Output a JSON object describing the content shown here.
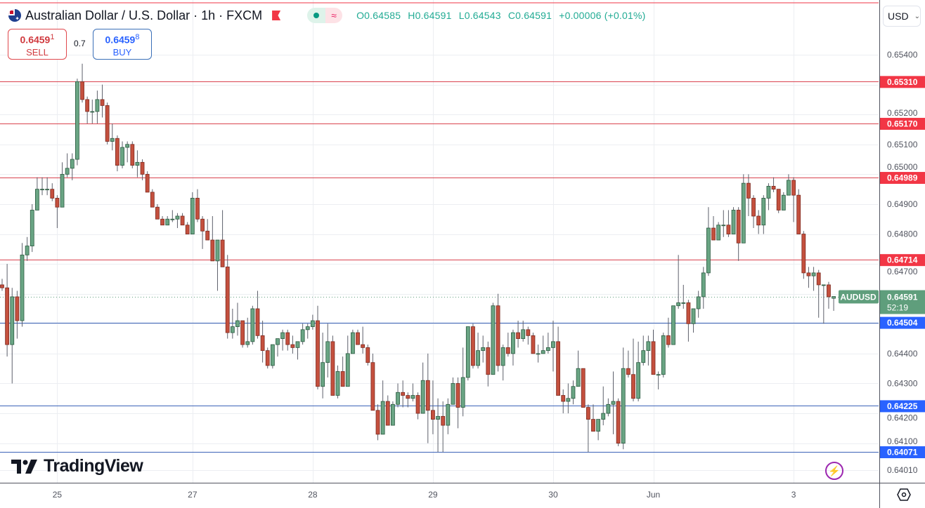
{
  "header": {
    "title": "Australian Dollar / U.S. Dollar · 1h · FXCM",
    "ohlc": {
      "open": "O0.64585",
      "high": "H0.64591",
      "low": "L0.64543",
      "close": "C0.64591",
      "change": "+0.00006 (+0.01%)"
    },
    "status_dot_color": "#089981"
  },
  "trade": {
    "sell_price_main": "0.6459",
    "sell_price_sup": "1",
    "sell_label": "SELL",
    "spread": "0.7",
    "buy_price_main": "0.6459",
    "buy_price_sup": "8",
    "buy_label": "BUY"
  },
  "currency_select": {
    "value": "USD"
  },
  "logo": "TradingView",
  "icons": [
    "flag-au-icon",
    "flag-marker-icon",
    "market-open-dot-icon",
    "approx-icon",
    "chevron-down-icon",
    "lightning-icon",
    "settings-hex-icon",
    "tradingview-logo-icon"
  ],
  "colors": {
    "up": "#6aa584",
    "down": "#c4503e",
    "resistance": "#f23645",
    "support": "#2962ff",
    "last_price": "#5f9e7c"
  },
  "chart_data": {
    "type": "candlestick",
    "symbol": "AUDUSD",
    "interval": "1h",
    "ylim": [
      0.6395,
      0.6555
    ],
    "grid": true,
    "y_ticks": [
      "0.65400",
      "0.65200",
      "0.65100",
      "0.65000",
      "0.64900",
      "0.64800",
      "0.64700",
      "0.64400",
      "0.64300",
      "0.64200",
      "0.64100",
      "0.64010"
    ],
    "x_ticks": [
      {
        "label": "25",
        "bar": 11
      },
      {
        "label": "27",
        "bar": 38
      },
      {
        "label": "28",
        "bar": 62
      },
      {
        "label": "29",
        "bar": 86
      },
      {
        "label": "30",
        "bar": 110
      },
      {
        "label": "Jun",
        "bar": 130
      },
      {
        "label": "3",
        "bar": 158
      }
    ],
    "levels": [
      {
        "price": "0.65310",
        "kind": "resistance"
      },
      {
        "price": "0.65170",
        "kind": "resistance"
      },
      {
        "price": "0.64989",
        "kind": "resistance"
      },
      {
        "price": "0.64714",
        "kind": "resistance"
      },
      {
        "price": "0.64504",
        "kind": "support"
      },
      {
        "price": "0.64225",
        "kind": "support"
      },
      {
        "price": "0.64071",
        "kind": "support"
      }
    ],
    "last_price": {
      "symbol": "AUDUSD",
      "price": "0.64591",
      "countdown": "52:19"
    },
    "candles_ohlc": [
      [
        0.6463,
        0.6465,
        0.6461,
        0.6462
      ],
      [
        0.6462,
        0.647,
        0.6439,
        0.6443
      ],
      [
        0.6443,
        0.6462,
        0.643,
        0.6459
      ],
      [
        0.6459,
        0.6461,
        0.6445,
        0.6451
      ],
      [
        0.6451,
        0.6477,
        0.6449,
        0.6473
      ],
      [
        0.6473,
        0.6479,
        0.6471,
        0.6476
      ],
      [
        0.6476,
        0.649,
        0.6474,
        0.6488
      ],
      [
        0.6488,
        0.6499,
        0.6488,
        0.6495
      ],
      [
        0.6495,
        0.6499,
        0.6493,
        0.6495
      ],
      [
        0.6495,
        0.6499,
        0.6493,
        0.6495
      ],
      [
        0.6495,
        0.6497,
        0.6491,
        0.6492
      ],
      [
        0.6492,
        0.6493,
        0.6482,
        0.6489
      ],
      [
        0.6489,
        0.6504,
        0.6489,
        0.65
      ],
      [
        0.65,
        0.6507,
        0.6499,
        0.6502
      ],
      [
        0.6502,
        0.6507,
        0.6498,
        0.6505
      ],
      [
        0.6505,
        0.6532,
        0.6503,
        0.6531
      ],
      [
        0.6531,
        0.6537,
        0.6524,
        0.6525
      ],
      [
        0.6525,
        0.6526,
        0.6517,
        0.6521
      ],
      [
        0.6521,
        0.6525,
        0.6517,
        0.6521
      ],
      [
        0.6521,
        0.6528,
        0.6517,
        0.6525
      ],
      [
        0.6525,
        0.653,
        0.6519,
        0.6523
      ],
      [
        0.6523,
        0.6524,
        0.651,
        0.6511
      ],
      [
        0.6511,
        0.6517,
        0.6508,
        0.6512
      ],
      [
        0.6512,
        0.6513,
        0.6501,
        0.6503
      ],
      [
        0.6503,
        0.6511,
        0.6502,
        0.6509
      ],
      [
        0.6509,
        0.6511,
        0.6504,
        0.651
      ],
      [
        0.651,
        0.6511,
        0.6502,
        0.6503
      ],
      [
        0.6503,
        0.6508,
        0.6499,
        0.6504
      ],
      [
        0.6504,
        0.6505,
        0.6498,
        0.65
      ],
      [
        0.65,
        0.6501,
        0.6494,
        0.6494
      ],
      [
        0.6494,
        0.6495,
        0.6489,
        0.6489
      ],
      [
        0.6489,
        0.649,
        0.6485,
        0.6485
      ],
      [
        0.6485,
        0.6486,
        0.6483,
        0.6483
      ],
      [
        0.6483,
        0.6486,
        0.6483,
        0.6485
      ],
      [
        0.6485,
        0.6488,
        0.6484,
        0.6485
      ],
      [
        0.6485,
        0.6487,
        0.6482,
        0.6486
      ],
      [
        0.6486,
        0.6487,
        0.6483,
        0.6483
      ],
      [
        0.6483,
        0.6484,
        0.648,
        0.648
      ],
      [
        0.648,
        0.6494,
        0.648,
        0.6492
      ],
      [
        0.6492,
        0.6495,
        0.6484,
        0.6485
      ],
      [
        0.6485,
        0.6486,
        0.6475,
        0.6481
      ],
      [
        0.6481,
        0.6485,
        0.6478,
        0.6478
      ],
      [
        0.6478,
        0.6486,
        0.6471,
        0.6471
      ],
      [
        0.6471,
        0.6478,
        0.6461,
        0.6478
      ],
      [
        0.6478,
        0.6488,
        0.6469,
        0.6469
      ],
      [
        0.6469,
        0.6473,
        0.6445,
        0.6447
      ],
      [
        0.6447,
        0.6455,
        0.6445,
        0.6449
      ],
      [
        0.6449,
        0.6457,
        0.6446,
        0.6451
      ],
      [
        0.6451,
        0.6451,
        0.6442,
        0.6443
      ],
      [
        0.6443,
        0.6452,
        0.6442,
        0.6444
      ],
      [
        0.6444,
        0.6456,
        0.6443,
        0.6455
      ],
      [
        0.6455,
        0.6461,
        0.6445,
        0.6446
      ],
      [
        0.6446,
        0.6451,
        0.6437,
        0.6441
      ],
      [
        0.6441,
        0.6442,
        0.6435,
        0.6436
      ],
      [
        0.6436,
        0.6443,
        0.6435,
        0.6443
      ],
      [
        0.6443,
        0.6445,
        0.6439,
        0.6445
      ],
      [
        0.6445,
        0.6448,
        0.6441,
        0.6447
      ],
      [
        0.6447,
        0.6448,
        0.6441,
        0.6443
      ],
      [
        0.6443,
        0.6446,
        0.644,
        0.6442
      ],
      [
        0.6442,
        0.6443,
        0.6438,
        0.6444
      ],
      [
        0.6444,
        0.645,
        0.6443,
        0.6448
      ],
      [
        0.6448,
        0.645,
        0.6445,
        0.6449
      ],
      [
        0.6449,
        0.6453,
        0.6448,
        0.6451
      ],
      [
        0.6451,
        0.6456,
        0.6428,
        0.6429
      ],
      [
        0.6429,
        0.6447,
        0.6425,
        0.6437
      ],
      [
        0.6437,
        0.645,
        0.6432,
        0.6444
      ],
      [
        0.6444,
        0.6446,
        0.6426,
        0.6426
      ],
      [
        0.6426,
        0.6436,
        0.6425,
        0.6434
      ],
      [
        0.6434,
        0.6439,
        0.6429,
        0.6429
      ],
      [
        0.6429,
        0.6446,
        0.6429,
        0.644
      ],
      [
        0.644,
        0.6448,
        0.644,
        0.6447
      ],
      [
        0.6447,
        0.6448,
        0.6443,
        0.6443
      ],
      [
        0.6443,
        0.6449,
        0.644,
        0.6442
      ],
      [
        0.6442,
        0.6443,
        0.6436,
        0.6437
      ],
      [
        0.6437,
        0.644,
        0.6421,
        0.6421
      ],
      [
        0.6421,
        0.6423,
        0.6411,
        0.6413
      ],
      [
        0.6413,
        0.6431,
        0.6413,
        0.6424
      ],
      [
        0.6424,
        0.6426,
        0.6416,
        0.6416
      ],
      [
        0.6416,
        0.6424,
        0.6416,
        0.6423
      ],
      [
        0.6423,
        0.643,
        0.6422,
        0.6427
      ],
      [
        0.6427,
        0.6431,
        0.6422,
        0.6426
      ],
      [
        0.6426,
        0.6427,
        0.6422,
        0.6425
      ],
      [
        0.6425,
        0.643,
        0.6424,
        0.6426
      ],
      [
        0.6426,
        0.6427,
        0.6418,
        0.642
      ],
      [
        0.642,
        0.6437,
        0.642,
        0.6431
      ],
      [
        0.6431,
        0.644,
        0.641,
        0.6421
      ],
      [
        0.6421,
        0.6431,
        0.6413,
        0.6418
      ],
      [
        0.6418,
        0.6425,
        0.6407,
        0.6419
      ],
      [
        0.6419,
        0.6424,
        0.6407,
        0.6416
      ],
      [
        0.6416,
        0.6425,
        0.6413,
        0.6423
      ],
      [
        0.6423,
        0.6432,
        0.6423,
        0.643
      ],
      [
        0.643,
        0.6432,
        0.6415,
        0.6422
      ],
      [
        0.6422,
        0.6442,
        0.6419,
        0.6432
      ],
      [
        0.6432,
        0.6449,
        0.6431,
        0.6449
      ],
      [
        0.6449,
        0.645,
        0.6435,
        0.6436
      ],
      [
        0.6436,
        0.6447,
        0.6435,
        0.6441
      ],
      [
        0.6441,
        0.6446,
        0.6437,
        0.6442
      ],
      [
        0.6442,
        0.6444,
        0.6429,
        0.6433
      ],
      [
        0.6433,
        0.6457,
        0.6433,
        0.6456
      ],
      [
        0.6456,
        0.646,
        0.6434,
        0.6436
      ],
      [
        0.6436,
        0.6443,
        0.6431,
        0.6442
      ],
      [
        0.6442,
        0.6447,
        0.6439,
        0.644
      ],
      [
        0.644,
        0.6448,
        0.6436,
        0.6447
      ],
      [
        0.6447,
        0.6451,
        0.6442,
        0.6445
      ],
      [
        0.6445,
        0.6451,
        0.6444,
        0.6448
      ],
      [
        0.6448,
        0.6449,
        0.6443,
        0.6446
      ],
      [
        0.6446,
        0.6447,
        0.644,
        0.644
      ],
      [
        0.644,
        0.6443,
        0.6437,
        0.644
      ],
      [
        0.644,
        0.6446,
        0.644,
        0.6441
      ],
      [
        0.6441,
        0.6447,
        0.644,
        0.6442
      ],
      [
        0.6442,
        0.6451,
        0.6434,
        0.6444
      ],
      [
        0.6444,
        0.6449,
        0.6426,
        0.6426
      ],
      [
        0.6426,
        0.6428,
        0.642,
        0.6424
      ],
      [
        0.6424,
        0.643,
        0.642,
        0.6425
      ],
      [
        0.6425,
        0.6431,
        0.6423,
        0.6429
      ],
      [
        0.6429,
        0.6441,
        0.6429,
        0.6435
      ],
      [
        0.6435,
        0.6435,
        0.6422,
        0.6422
      ],
      [
        0.6422,
        0.6423,
        0.6407,
        0.6418
      ],
      [
        0.6418,
        0.6423,
        0.6415,
        0.6414
      ],
      [
        0.6414,
        0.6418,
        0.6411,
        0.6418
      ],
      [
        0.6418,
        0.6429,
        0.6416,
        0.642
      ],
      [
        0.642,
        0.6425,
        0.6419,
        0.6423
      ],
      [
        0.6423,
        0.6434,
        0.6413,
        0.6424
      ],
      [
        0.6424,
        0.6425,
        0.6409,
        0.641
      ],
      [
        0.641,
        0.6442,
        0.6408,
        0.6435
      ],
      [
        0.6435,
        0.6441,
        0.6432,
        0.6433
      ],
      [
        0.6433,
        0.6445,
        0.6424,
        0.6425
      ],
      [
        0.6425,
        0.6444,
        0.6424,
        0.6437
      ],
      [
        0.6437,
        0.6446,
        0.6436,
        0.6441
      ],
      [
        0.6441,
        0.6446,
        0.6436,
        0.6444
      ],
      [
        0.6444,
        0.6448,
        0.6433,
        0.6433
      ],
      [
        0.6433,
        0.6434,
        0.6428,
        0.6433
      ],
      [
        0.6433,
        0.6447,
        0.6432,
        0.6446
      ],
      [
        0.6446,
        0.6452,
        0.6442,
        0.6443
      ],
      [
        0.6443,
        0.6456,
        0.6443,
        0.6456
      ],
      [
        0.6456,
        0.6473,
        0.6455,
        0.6457
      ],
      [
        0.6457,
        0.6463,
        0.6455,
        0.6457
      ],
      [
        0.6457,
        0.6458,
        0.6444,
        0.645
      ],
      [
        0.645,
        0.6452,
        0.6447,
        0.6455
      ],
      [
        0.6455,
        0.6461,
        0.6452,
        0.6459
      ],
      [
        0.6459,
        0.6469,
        0.6455,
        0.6467
      ],
      [
        0.6467,
        0.6489,
        0.6466,
        0.6482
      ],
      [
        0.6482,
        0.6486,
        0.6478,
        0.6478
      ],
      [
        0.6478,
        0.6484,
        0.6478,
        0.6483
      ],
      [
        0.6483,
        0.6488,
        0.6479,
        0.6483
      ],
      [
        0.6483,
        0.6488,
        0.6479,
        0.648
      ],
      [
        0.648,
        0.6489,
        0.648,
        0.6488
      ],
      [
        0.6488,
        0.6489,
        0.6471,
        0.6477
      ],
      [
        0.6477,
        0.65,
        0.6477,
        0.6497
      ],
      [
        0.6497,
        0.65,
        0.6486,
        0.6492
      ],
      [
        0.6492,
        0.6493,
        0.6482,
        0.6486
      ],
      [
        0.6486,
        0.6488,
        0.648,
        0.6483
      ],
      [
        0.6483,
        0.6493,
        0.648,
        0.6492
      ],
      [
        0.6492,
        0.6497,
        0.6488,
        0.6496
      ],
      [
        0.6496,
        0.6499,
        0.6494,
        0.6495
      ],
      [
        0.6495,
        0.6495,
        0.6487,
        0.6488
      ],
      [
        0.6488,
        0.6494,
        0.6488,
        0.6493
      ],
      [
        0.6493,
        0.65,
        0.6493,
        0.6498
      ],
      [
        0.6498,
        0.6499,
        0.6484,
        0.6493
      ],
      [
        0.6493,
        0.6495,
        0.648,
        0.648
      ],
      [
        0.648,
        0.6481,
        0.6465,
        0.6467
      ],
      [
        0.6467,
        0.6469,
        0.6462,
        0.6466
      ],
      [
        0.6466,
        0.6469,
        0.6461,
        0.6467
      ],
      [
        0.6467,
        0.6468,
        0.6452,
        0.6463
      ],
      [
        0.6463,
        0.6463,
        0.645,
        0.6463
      ],
      [
        0.6463,
        0.6464,
        0.6455,
        0.6459
      ],
      [
        0.64585,
        0.64591,
        0.64543,
        0.64591
      ]
    ]
  }
}
